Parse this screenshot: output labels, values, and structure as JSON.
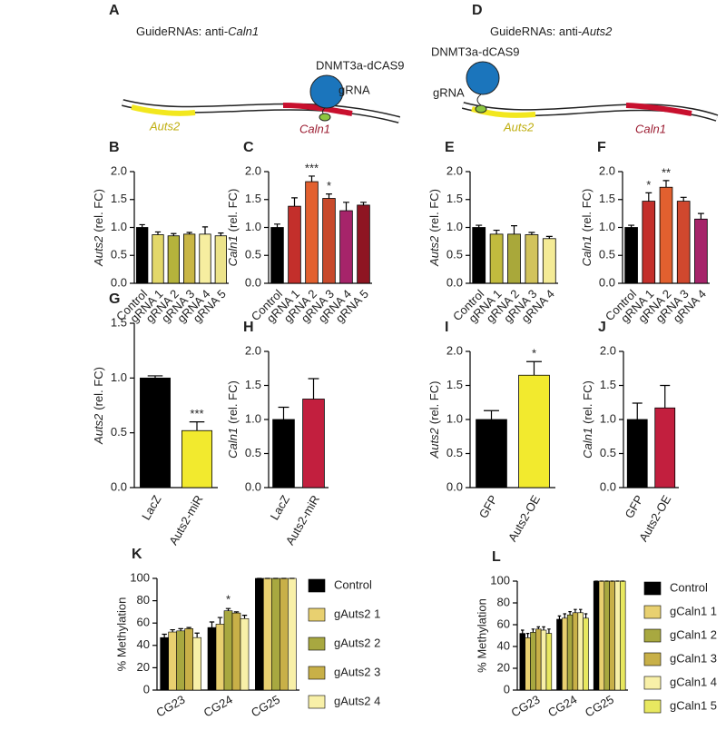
{
  "diagrams": [
    {
      "panel": "A",
      "title_prefix": "GuideRNAs: anti-",
      "title_gene": "Caln1",
      "enzyme": "DNMT3a-dCAS9",
      "grna": "gRNA",
      "gene_left": "Auts2",
      "gene_right": "Caln1"
    },
    {
      "panel": "D",
      "title_prefix": "GuideRNAs: anti-",
      "title_gene": "Auts2",
      "enzyme": "DNMT3a-dCAS9",
      "grna": "gRNA",
      "gene_left": "Auts2",
      "gene_right": "Caln1"
    }
  ],
  "chart_data": [
    {
      "type": "bar",
      "panel": "B",
      "ylabel_gene": "Auts2",
      "ylabel_unit": "(rel. FC)",
      "categories": [
        "Control",
        "gRNA 1",
        "gRNA 2",
        "gRNA 3",
        "gRNA 4",
        "gRNA 5"
      ],
      "values": [
        1.0,
        0.87,
        0.85,
        0.88,
        0.88,
        0.85
      ],
      "errors": [
        0.05,
        0.05,
        0.04,
        0.03,
        0.13,
        0.05
      ],
      "colors": [
        "#000000",
        "#e3d86a",
        "#b5b33c",
        "#c9b646",
        "#f6eea0",
        "#ece38a"
      ],
      "annotations": [
        null,
        null,
        null,
        null,
        null,
        null
      ],
      "ylim": [
        0,
        2
      ],
      "yticks": [
        {
          "value": 0,
          "label": "0.0"
        },
        0.5,
        {
          "value": 1,
          "label": "1.0"
        },
        1.5,
        {
          "value": 2,
          "label": "2.0"
        }
      ]
    },
    {
      "type": "bar",
      "panel": "C",
      "ylabel_gene": "Caln1",
      "ylabel_unit": "(rel. FC)",
      "categories": [
        "Control",
        "gRNA 1",
        "gRNA 2",
        "gRNA 3",
        "gRNA 4",
        "gRNA 5"
      ],
      "values": [
        1.0,
        1.38,
        1.82,
        1.52,
        1.3,
        1.4
      ],
      "errors": [
        0.06,
        0.15,
        0.1,
        0.08,
        0.15,
        0.05
      ],
      "colors": [
        "#000000",
        "#c32f2b",
        "#e2602f",
        "#c84a2c",
        "#a6246a",
        "#8e1522"
      ],
      "annotations": [
        null,
        null,
        "***",
        "*",
        null,
        null
      ],
      "ylim": [
        0,
        2
      ],
      "yticks": [
        {
          "value": 0,
          "label": "0.0"
        },
        0.5,
        {
          "value": 1,
          "label": "1.0"
        },
        1.5,
        {
          "value": 2,
          "label": "2.0"
        }
      ]
    },
    {
      "type": "bar",
      "panel": "E",
      "ylabel_gene": "Auts2",
      "ylabel_unit": "(rel. FC)",
      "categories": [
        "Control",
        "gRNA 1",
        "gRNA 2",
        "gRNA 3",
        "gRNA 4"
      ],
      "values": [
        1.0,
        0.88,
        0.88,
        0.87,
        0.8
      ],
      "errors": [
        0.04,
        0.07,
        0.15,
        0.04,
        0.04
      ],
      "colors": [
        "#000000",
        "#c2bb3e",
        "#a9a83a",
        "#d2c35c",
        "#f4eb96"
      ],
      "annotations": [
        null,
        null,
        null,
        null,
        null
      ],
      "ylim": [
        0,
        2
      ],
      "yticks": [
        {
          "value": 0,
          "label": "0.0"
        },
        0.5,
        {
          "value": 1,
          "label": "1.0"
        },
        1.5,
        {
          "value": 2,
          "label": "2.0"
        }
      ]
    },
    {
      "type": "bar",
      "panel": "F",
      "ylabel_gene": "Caln1",
      "ylabel_unit": "(rel. FC)",
      "categories": [
        "Control",
        "gRNA 1",
        "gRNA 2",
        "gRNA 3",
        "gRNA 4"
      ],
      "values": [
        1.0,
        1.47,
        1.72,
        1.47,
        1.15
      ],
      "errors": [
        0.04,
        0.15,
        0.12,
        0.07,
        0.1
      ],
      "colors": [
        "#000000",
        "#c32f2b",
        "#e2602f",
        "#d0482e",
        "#a6246a"
      ],
      "annotations": [
        null,
        "*",
        "**",
        null,
        null
      ],
      "ylim": [
        0,
        2
      ],
      "yticks": [
        {
          "value": 0,
          "label": "0.0"
        },
        0.5,
        {
          "value": 1,
          "label": "1.0"
        },
        1.5,
        {
          "value": 2,
          "label": "2.0"
        }
      ]
    },
    {
      "type": "bar",
      "panel": "G",
      "ylabel_gene": "Auts2",
      "ylabel_unit": "(rel. FC)",
      "categories": [
        "LacZ",
        "Auts2-miR"
      ],
      "values": [
        1.0,
        0.52
      ],
      "errors": [
        0.02,
        0.08
      ],
      "colors": [
        "#000000",
        "#f2ea2e"
      ],
      "annotations": [
        null,
        "***"
      ],
      "ylim": [
        0,
        1.5
      ],
      "yticks": [
        {
          "value": 0,
          "label": "0.0"
        },
        0.5,
        {
          "value": 1,
          "label": "1.0"
        },
        1.5
      ]
    },
    {
      "type": "bar",
      "panel": "H",
      "ylabel_gene": "Caln1",
      "ylabel_unit": "(rel. FC)",
      "categories": [
        "LacZ",
        "Auts2-miR"
      ],
      "values": [
        1.0,
        1.3
      ],
      "errors": [
        0.18,
        0.3
      ],
      "colors": [
        "#000000",
        "#c21f3e"
      ],
      "annotations": [
        null,
        null
      ],
      "ylim": [
        0,
        2
      ],
      "yticks": [
        {
          "value": 0,
          "label": "0.0"
        },
        0.5,
        {
          "value": 1,
          "label": "1.0"
        },
        1.5,
        {
          "value": 2,
          "label": "2.0"
        }
      ]
    },
    {
      "type": "bar",
      "panel": "I",
      "ylabel_gene": "Auts2",
      "ylabel_unit": "(rel. FC)",
      "categories": [
        "GFP",
        "Auts2-OE"
      ],
      "values": [
        1.0,
        1.65
      ],
      "errors": [
        0.13,
        0.2
      ],
      "colors": [
        "#000000",
        "#f2ea2e"
      ],
      "annotations": [
        null,
        "*"
      ],
      "ylim": [
        0,
        2
      ],
      "yticks": [
        {
          "value": 0,
          "label": "0.0"
        },
        0.5,
        {
          "value": 1,
          "label": "1.0"
        },
        1.5,
        {
          "value": 2,
          "label": "2.0"
        }
      ]
    },
    {
      "type": "bar",
      "panel": "J",
      "ylabel_gene": "Caln1",
      "ylabel_unit": "(rel. FC)",
      "categories": [
        "GFP",
        "Auts2-OE"
      ],
      "values": [
        1.0,
        1.17
      ],
      "errors": [
        0.24,
        0.33
      ],
      "colors": [
        "#000000",
        "#c21f3e"
      ],
      "annotations": [
        null,
        null
      ],
      "ylim": [
        0,
        2
      ],
      "yticks": [
        {
          "value": 0,
          "label": "0.0"
        },
        0.5,
        {
          "value": 1,
          "label": "1.0"
        },
        1.5,
        {
          "value": 2,
          "label": "2.0"
        }
      ]
    },
    {
      "type": "grouped_bar",
      "panel": "K",
      "ylabel": "% Methylation",
      "categories": [
        "CG23",
        "CG24",
        "CG25"
      ],
      "series": [
        {
          "name": "Control",
          "color": "#000000",
          "values": [
            47,
            56,
            100
          ],
          "errors": [
            3,
            5,
            0
          ],
          "annotations": [
            null,
            null,
            null
          ]
        },
        {
          "name": "gAuts2 1",
          "color": "#e8d070",
          "values": [
            52,
            59,
            100
          ],
          "errors": [
            2,
            6,
            0
          ],
          "annotations": [
            null,
            null,
            null
          ]
        },
        {
          "name": "gAuts2 2",
          "color": "#a8a840",
          "values": [
            53,
            71,
            100
          ],
          "errors": [
            2,
            2,
            0
          ],
          "annotations": [
            null,
            "*",
            null
          ]
        },
        {
          "name": "gAuts2 3",
          "color": "#c8b048",
          "values": [
            55,
            69,
            100
          ],
          "errors": [
            1,
            1,
            0
          ],
          "annotations": [
            null,
            null,
            null
          ]
        },
        {
          "name": "gAuts2 4",
          "color": "#f8f0a8",
          "values": [
            47,
            64,
            100
          ],
          "errors": [
            4,
            3,
            0
          ],
          "annotations": [
            null,
            null,
            null
          ]
        }
      ],
      "ylim": [
        0,
        100
      ],
      "yticks": [
        0,
        20,
        40,
        60,
        80,
        100
      ]
    },
    {
      "type": "grouped_bar",
      "panel": "L",
      "ylabel": "% Methylation",
      "categories": [
        "CG23",
        "CG24",
        "CG25"
      ],
      "series": [
        {
          "name": "Control",
          "color": "#000000",
          "values": [
            52,
            65,
            100
          ],
          "errors": [
            3,
            3,
            0
          ],
          "annotations": [
            null,
            null,
            null
          ]
        },
        {
          "name": "gCaln1 1",
          "color": "#e8d070",
          "values": [
            48,
            66,
            100
          ],
          "errors": [
            4,
            4,
            0
          ],
          "annotations": [
            null,
            null,
            null
          ]
        },
        {
          "name": "gCaln1 2",
          "color": "#a8a840",
          "values": [
            53,
            69,
            100
          ],
          "errors": [
            3,
            3,
            0
          ],
          "annotations": [
            null,
            null,
            null
          ]
        },
        {
          "name": "gCaln1 3",
          "color": "#c8b048",
          "values": [
            56,
            71,
            100
          ],
          "errors": [
            2,
            3,
            0
          ],
          "annotations": [
            null,
            null,
            null
          ]
        },
        {
          "name": "gCaln1 4",
          "color": "#f8f0a8",
          "values": [
            55,
            71,
            100
          ],
          "errors": [
            3,
            3,
            0
          ],
          "annotations": [
            null,
            null,
            null
          ]
        },
        {
          "name": "gCaln1 5",
          "color": "#e8e860",
          "values": [
            52,
            66,
            100
          ],
          "errors": [
            4,
            4,
            0
          ],
          "annotations": [
            null,
            null,
            null
          ]
        }
      ],
      "ylim": [
        0,
        100
      ],
      "yticks": [
        0,
        20,
        40,
        60,
        80,
        100
      ]
    }
  ]
}
